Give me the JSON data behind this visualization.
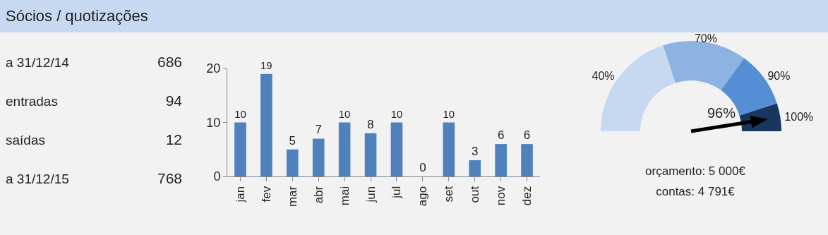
{
  "chart_data": [
    {
      "type": "other",
      "title": "Sócios / quotizações",
      "annotations": [
        "a 31/12/14",
        "686",
        "entradas",
        "94",
        "saídas",
        "12",
        "a 31/12/15",
        "768"
      ]
    },
    {
      "type": "bar",
      "categories": [
        "jan",
        "fev",
        "mar",
        "abr",
        "mai",
        "jun",
        "jul",
        "ago",
        "set",
        "out",
        "nov",
        "dez"
      ],
      "values": [
        10,
        19,
        5,
        7,
        10,
        8,
        10,
        0,
        10,
        3,
        6,
        6
      ],
      "color": "#4f81bd",
      "ylim": [
        0,
        20
      ],
      "yticks": [
        0,
        10,
        20
      ],
      "data_labels": true,
      "legend": false
    },
    {
      "type": "donut",
      "categories": [
        "40%",
        "70%",
        "90%",
        "100%"
      ],
      "values": [
        40,
        30,
        20,
        10
      ],
      "colors": [
        "#c6d9f1",
        "#8db3e2",
        "#558ed5",
        "#17375e"
      ],
      "needle": "100%",
      "annotations": [
        "96%",
        "orçamento: 5 000€",
        "contas: 4 791€"
      ]
    }
  ]
}
